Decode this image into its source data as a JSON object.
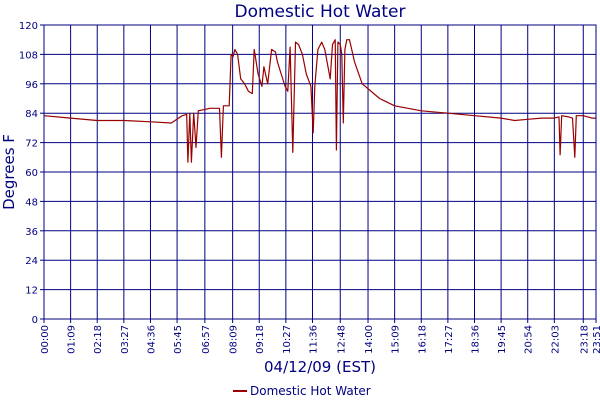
{
  "chart_data": {
    "type": "line",
    "title": "Domestic Hot Water",
    "xlabel": "04/12/09 (EST)",
    "ylabel": "Degrees F",
    "ylim": [
      0,
      120
    ],
    "y_ticks": [
      "0",
      "12",
      "24",
      "36",
      "48",
      "60",
      "72",
      "84",
      "96",
      "108",
      "120"
    ],
    "x_ticks": [
      "00:00",
      "01:09",
      "02:18",
      "03:27",
      "04:36",
      "05:45",
      "06:57",
      "08:09",
      "09:18",
      "10:27",
      "11:36",
      "12:48",
      "14:00",
      "15:09",
      "16:18",
      "17:27",
      "18:36",
      "19:45",
      "20:54",
      "22:03",
      "23:18",
      "23:51"
    ],
    "grid": true,
    "legend_position": "bottom-center",
    "colors": {
      "series": "#990000",
      "grid": "#000080",
      "text": "#000080"
    },
    "series": [
      {
        "name": "Domestic Hot Water",
        "points": [
          [
            "00:00",
            83
          ],
          [
            "01:09",
            82
          ],
          [
            "02:18",
            81
          ],
          [
            "03:27",
            81
          ],
          [
            "04:36",
            80.5
          ],
          [
            "05:30",
            80
          ],
          [
            "05:58",
            83
          ],
          [
            "06:10",
            83.5
          ],
          [
            "06:13",
            64
          ],
          [
            "06:18",
            84
          ],
          [
            "06:22",
            64
          ],
          [
            "06:28",
            84
          ],
          [
            "06:34",
            70
          ],
          [
            "06:40",
            85
          ],
          [
            "07:10",
            86
          ],
          [
            "07:35",
            86
          ],
          [
            "07:40",
            66
          ],
          [
            "07:45",
            87
          ],
          [
            "08:00",
            87
          ],
          [
            "08:05",
            108
          ],
          [
            "08:10",
            107
          ],
          [
            "08:15",
            110
          ],
          [
            "08:22",
            108
          ],
          [
            "08:30",
            98
          ],
          [
            "08:40",
            96
          ],
          [
            "08:50",
            93
          ],
          [
            "09:00",
            92
          ],
          [
            "09:05",
            110
          ],
          [
            "09:15",
            100
          ],
          [
            "09:25",
            95
          ],
          [
            "09:30",
            103
          ],
          [
            "09:40",
            96
          ],
          [
            "09:50",
            110
          ],
          [
            "10:00",
            109
          ],
          [
            "10:05",
            105
          ],
          [
            "10:15",
            100
          ],
          [
            "10:25",
            95
          ],
          [
            "10:32",
            93
          ],
          [
            "10:38",
            111
          ],
          [
            "10:45",
            68
          ],
          [
            "10:52",
            113
          ],
          [
            "11:00",
            112
          ],
          [
            "11:10",
            108
          ],
          [
            "11:20",
            100
          ],
          [
            "11:32",
            95
          ],
          [
            "11:38",
            76
          ],
          [
            "11:42",
            95
          ],
          [
            "11:50",
            110
          ],
          [
            "12:00",
            113
          ],
          [
            "12:08",
            110
          ],
          [
            "12:15",
            104
          ],
          [
            "12:22",
            98
          ],
          [
            "12:28",
            112
          ],
          [
            "12:35",
            114
          ],
          [
            "12:38",
            69
          ],
          [
            "12:42",
            113
          ],
          [
            "12:48",
            112
          ],
          [
            "12:52",
            108
          ],
          [
            "12:56",
            80
          ],
          [
            "13:00",
            110
          ],
          [
            "13:05",
            114
          ],
          [
            "13:12",
            114
          ],
          [
            "13:25",
            105
          ],
          [
            "13:45",
            96
          ],
          [
            "14:30",
            90
          ],
          [
            "15:09",
            87
          ],
          [
            "16:18",
            85
          ],
          [
            "17:27",
            84
          ],
          [
            "18:36",
            83
          ],
          [
            "19:45",
            82
          ],
          [
            "20:20",
            81
          ],
          [
            "20:54",
            81.5
          ],
          [
            "21:30",
            82
          ],
          [
            "22:03",
            82
          ],
          [
            "22:15",
            82.5
          ],
          [
            "22:18",
            67
          ],
          [
            "22:22",
            83
          ],
          [
            "22:40",
            82.5
          ],
          [
            "22:50",
            82
          ],
          [
            "22:56",
            66
          ],
          [
            "23:00",
            83
          ],
          [
            "23:18",
            83
          ],
          [
            "23:40",
            82
          ],
          [
            "23:51",
            82
          ]
        ]
      }
    ]
  }
}
